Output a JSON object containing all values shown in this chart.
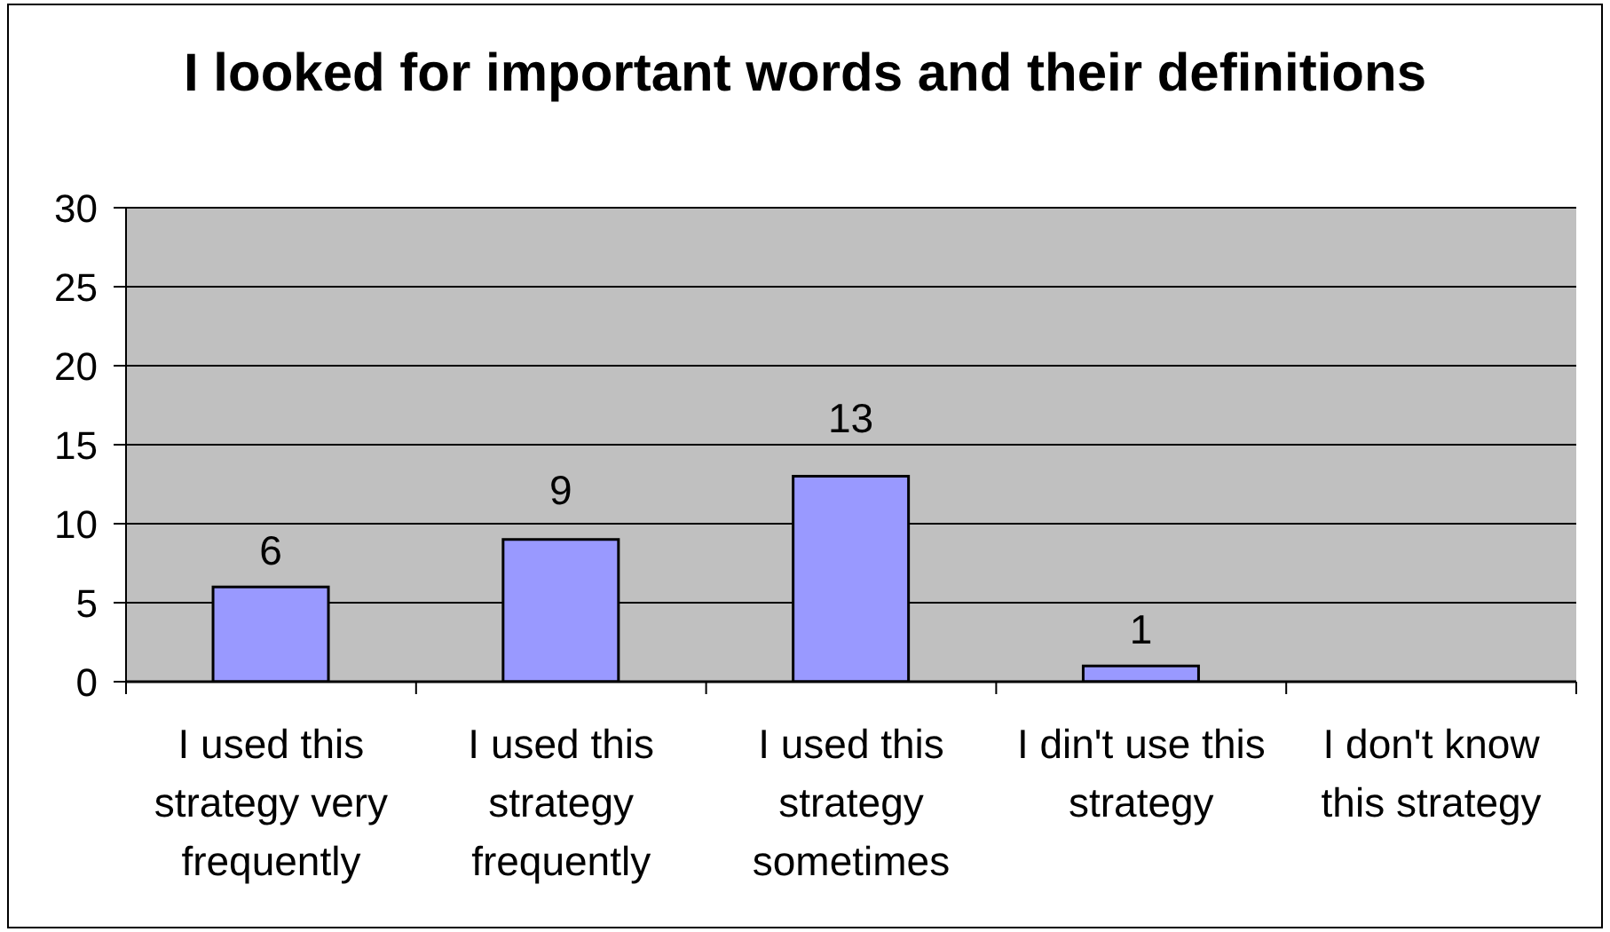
{
  "chart_data": {
    "type": "bar",
    "title": "I looked for important words and their definitions",
    "categories": [
      "I used this strategy very frequently",
      "I used this strategy frequently",
      "I used this strategy sometimes",
      "I din't use this strategy",
      "I don't know this strategy"
    ],
    "values": [
      6,
      9,
      13,
      1,
      0
    ],
    "color": "#9999ff",
    "value_labels": [
      "6",
      "9",
      "13",
      "1",
      null
    ],
    "ylim": [
      0,
      30
    ],
    "yticks": [
      0,
      5,
      10,
      15,
      20,
      25,
      30
    ],
    "grid": "y"
  }
}
